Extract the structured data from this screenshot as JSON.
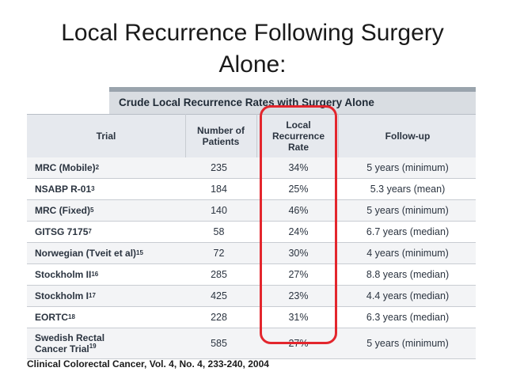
{
  "slide": {
    "title_line1": "Local Recurrence Following Surgery",
    "title_line2": "Alone:",
    "citation": "Clinical Colorectal Cancer, Vol. 4, No. 4, 233-240, 2004"
  },
  "table": {
    "caption": "Crude Local Recurrence Rates with Surgery Alone",
    "headers": {
      "trial": "Trial",
      "patients_line1": "Number of",
      "patients_line2": "Patients",
      "rate_line1": "Local",
      "rate_line2": "Recurrence",
      "rate_line3": "Rate",
      "followup": "Follow-up"
    },
    "rows": [
      {
        "trial": "MRC (Mobile)",
        "ref": "2",
        "patients": "235",
        "rate": "34%",
        "followup": "5 years (minimum)"
      },
      {
        "trial": "NSABP R-01",
        "ref": "3",
        "patients": "184",
        "rate": "25%",
        "followup": "5.3 years (mean)"
      },
      {
        "trial": "MRC (Fixed)",
        "ref": "5",
        "patients": "140",
        "rate": "46%",
        "followup": "5 years (minimum)"
      },
      {
        "trial": "GITSG 7175",
        "ref": "7",
        "patients": "58",
        "rate": "24%",
        "followup": "6.7 years (median)"
      },
      {
        "trial": "Norwegian (Tveit et al)",
        "ref": "15",
        "patients": "72",
        "rate": "30%",
        "followup": "4 years (minimum)"
      },
      {
        "trial": "Stockholm II",
        "ref": "16",
        "patients": "285",
        "rate": "27%",
        "followup": "8.8 years (median)"
      },
      {
        "trial": "Stockholm I",
        "ref": "17",
        "patients": "425",
        "rate": "23%",
        "followup": "4.4 years (median)"
      },
      {
        "trial": "EORTC",
        "ref": "18",
        "patients": "228",
        "rate": "31%",
        "followup": "6.3 years (median)"
      },
      {
        "trial_line1": "Swedish Rectal",
        "trial_line2": "Cancer Trial",
        "ref": "19",
        "patients": "585",
        "rate": "27%",
        "followup": "5 years (minimum)"
      }
    ]
  },
  "colors": {
    "highlight": "#e3262d",
    "caption_bg": "#d9dde2",
    "header_bg": "#e6e9ee"
  }
}
